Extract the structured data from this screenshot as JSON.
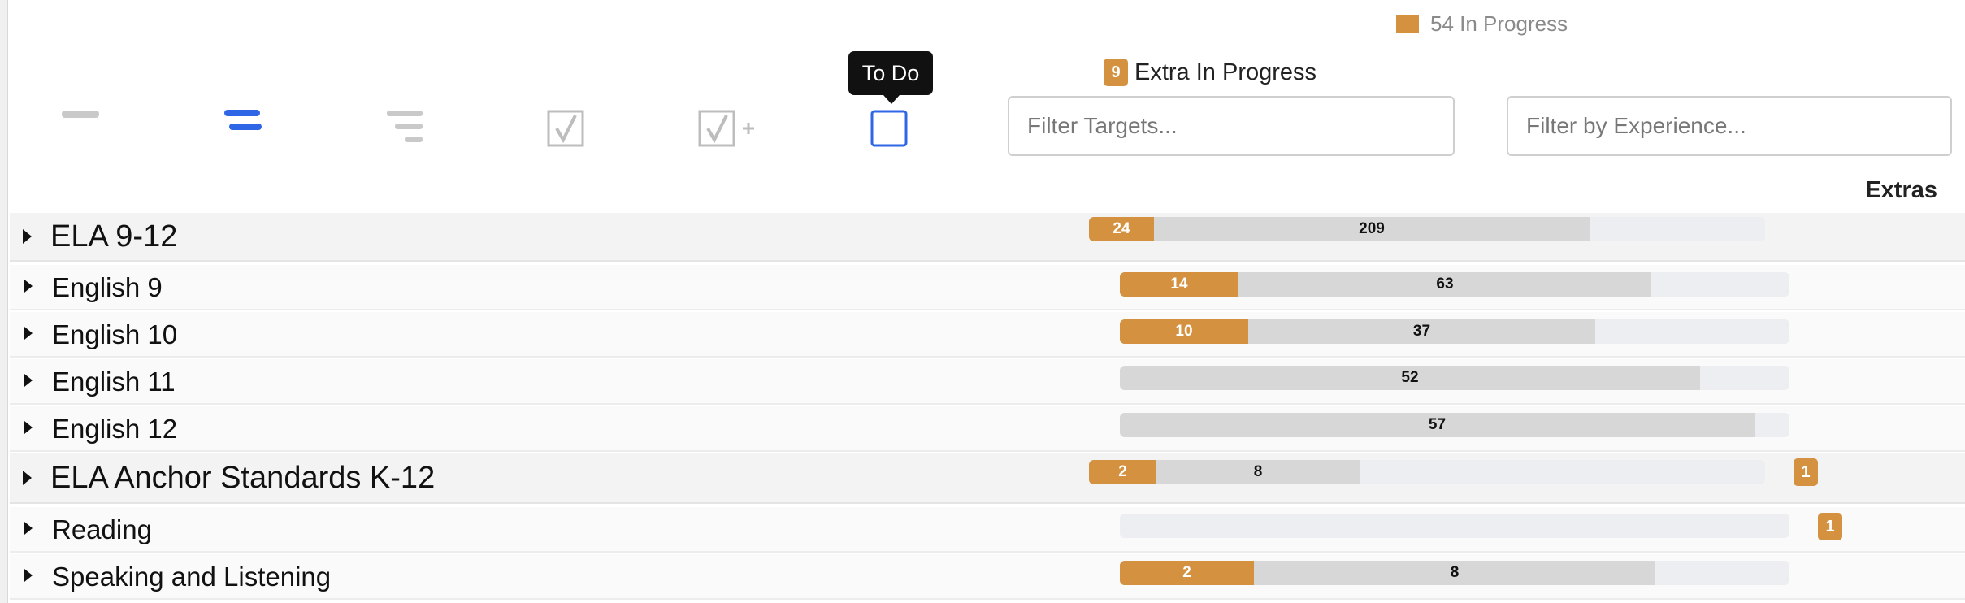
{
  "legend": {
    "in_progress_label": "54 In Progress",
    "color": "#d4913f"
  },
  "extra_summary": {
    "count": "9",
    "label": "Extra In Progress"
  },
  "tooltip": {
    "text": "To Do"
  },
  "toolbar": {
    "icons": [
      "collapse-level-1-icon",
      "collapse-level-2-icon",
      "expand-all-icon",
      "check-icon",
      "check-plus-icon",
      "todo-square-icon"
    ]
  },
  "filters": {
    "targets_placeholder": "Filter Targets...",
    "experience_placeholder": "Filter by Experience..."
  },
  "table": {
    "extras_header": "Extras",
    "rows": [
      {
        "label": "ELA 9-12",
        "type": "group",
        "in_progress": 24,
        "completed": 209,
        "prog_frac": 0.096,
        "done_frac": 0.74,
        "extras": ""
      },
      {
        "label": "English 9",
        "type": "child",
        "in_progress": 14,
        "completed": 63,
        "prog_frac": 0.177,
        "done_frac": 0.794,
        "extras": ""
      },
      {
        "label": "English 10",
        "type": "child",
        "in_progress": 10,
        "completed": 37,
        "prog_frac": 0.192,
        "done_frac": 0.71,
        "extras": ""
      },
      {
        "label": "English 11",
        "type": "child",
        "in_progress": null,
        "completed": 52,
        "prog_frac": 0,
        "done_frac": 0.866,
        "extras": ""
      },
      {
        "label": "English 12",
        "type": "child",
        "in_progress": null,
        "completed": 57,
        "prog_frac": 0,
        "done_frac": 0.948,
        "extras": ""
      },
      {
        "label": "ELA Anchor Standards K-12",
        "type": "group",
        "in_progress": 2,
        "completed": 8,
        "prog_frac": 0.1,
        "done_frac": 0.4,
        "extras": "1"
      },
      {
        "label": "Reading",
        "type": "child",
        "in_progress": null,
        "completed": null,
        "prog_frac": 0,
        "done_frac": 0,
        "extras": "1"
      },
      {
        "label": "Speaking and Listening",
        "type": "child",
        "in_progress": 2,
        "completed": 8,
        "prog_frac": 0.2,
        "done_frac": 0.8,
        "extras": ""
      }
    ]
  }
}
